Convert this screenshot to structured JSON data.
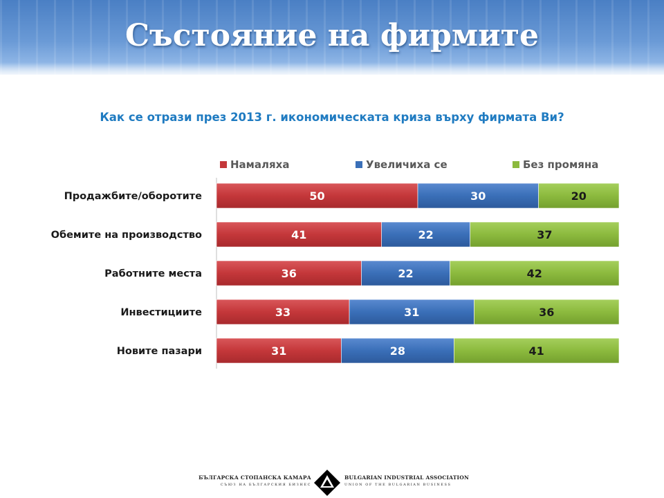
{
  "page": {
    "title": "Състояние на фирмите"
  },
  "chart_data": {
    "type": "bar",
    "orientation": "horizontal",
    "stacked": true,
    "title": "Как се отрази през 2013 г. икономическата криза върху фирмата Ви?",
    "categories": [
      "Продажбите/оборотите",
      "Обемите на производство",
      "Работните места",
      "Инвестициите",
      "Новите пазари"
    ],
    "series": [
      {
        "name": "Намаляха",
        "values": [
          50,
          41,
          36,
          33,
          31
        ],
        "color": "#c4373a"
      },
      {
        "name": "Увеличиха се",
        "values": [
          30,
          22,
          22,
          31,
          28
        ],
        "color": "#3a6fb8"
      },
      {
        "name": "Без промяна",
        "values": [
          20,
          37,
          42,
          36,
          41
        ],
        "color": "#8cba3e"
      }
    ],
    "xlim": [
      0,
      100
    ],
    "legend": "top",
    "grid": false,
    "data_labels": true
  },
  "footer": {
    "logo_left_main": "БЪЛГАРСКА СТОПАНСКА КАМАРА",
    "logo_left_sub": "СЪЮЗ НА БЪЛГАРСКИЯ БИЗНЕС",
    "logo_right_main": "BULGARIAN INDUSTRIAL ASSOCIATION",
    "logo_right_sub": "UNION OF THE BULGARIAN BUSINESS"
  }
}
